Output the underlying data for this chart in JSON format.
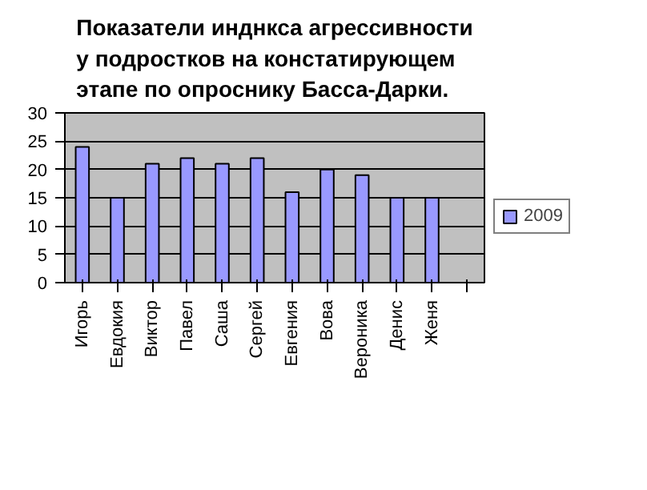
{
  "chart_data": {
    "type": "bar",
    "title": "Показатели инднкса агрессивности\nу подростков на констатирующем\nэтапе по опроснику Басса-Дарки.",
    "categories": [
      "Игорь",
      "Евдокия",
      "Виктор",
      "Павел",
      "Саша",
      "Сергей",
      "Евгения",
      "Вова",
      "Вероника",
      "Денис",
      "Женя",
      null
    ],
    "series": [
      {
        "name": "2009",
        "color": "#9999ff",
        "values": [
          24,
          15,
          21,
          22,
          21,
          22,
          16,
          20,
          19,
          15,
          15,
          null
        ]
      }
    ],
    "ylim": [
      0,
      30
    ],
    "yticks": [
      0,
      5,
      10,
      15,
      20,
      25,
      30
    ],
    "grid": "y",
    "legend": "right"
  }
}
